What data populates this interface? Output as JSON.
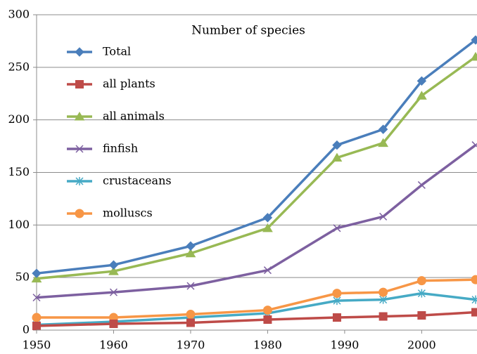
{
  "chart_data": {
    "type": "line",
    "title": "Number of species",
    "x": [
      1950,
      1960,
      1970,
      1980,
      1989,
      1995,
      2000,
      2007
    ],
    "series": [
      {
        "name": "Total",
        "color": "#4a7ebb",
        "marker": "diamond",
        "values": [
          54,
          62,
          80,
          107,
          176,
          191,
          237,
          276
        ]
      },
      {
        "name": "all plants",
        "color": "#be4b48",
        "marker": "square",
        "values": [
          4,
          6,
          7,
          10,
          12,
          13,
          14,
          17
        ]
      },
      {
        "name": "all animals",
        "color": "#98b954",
        "marker": "triangle",
        "values": [
          49,
          56,
          73,
          97,
          164,
          178,
          223,
          260
        ]
      },
      {
        "name": "finfish",
        "color": "#7d60a0",
        "marker": "x",
        "values": [
          31,
          36,
          42,
          57,
          97,
          108,
          138,
          176
        ]
      },
      {
        "name": "crustaceans",
        "color": "#46aac5",
        "marker": "star",
        "values": [
          5,
          8,
          12,
          16,
          28,
          29,
          35,
          29
        ]
      },
      {
        "name": "molluscs",
        "color": "#f79646",
        "marker": "circle",
        "values": [
          12,
          12,
          15,
          19,
          35,
          36,
          47,
          48
        ]
      }
    ],
    "xlim": [
      1950,
      2007
    ],
    "xticks": [
      1950,
      1960,
      1970,
      1980,
      1990,
      2000
    ],
    "ylim": [
      0,
      300
    ],
    "yticks": [
      0,
      50,
      100,
      150,
      200,
      250,
      300
    ],
    "grid": true,
    "legend": "upper-left"
  }
}
